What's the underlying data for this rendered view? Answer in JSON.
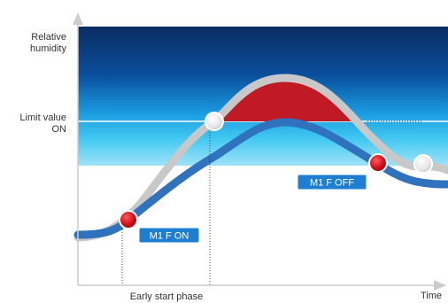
{
  "y_axis_label": [
    "Relative",
    "humidity"
  ],
  "limit_label": [
    "Limit value",
    "ON"
  ],
  "x_axis_label": "Time",
  "phase_label": "Early start phase",
  "badge_on": "M1 F ON",
  "badge_off": "M1 F OFF",
  "colors": {
    "band_dark": "#0a2d63",
    "band_mid": "#0b6fc3",
    "band_light": "#3fc7f1",
    "upper_curve": "#c8c8c8",
    "lower_curve": "#2f72bd",
    "exceed_fill": "#c01a24",
    "limit_line": "#ffffff",
    "badge_bg": "#1e7fd0",
    "marker_red": "#d0101a",
    "marker_grey": "#d8d8d8"
  },
  "icons": {
    "marker_on": "red-dot",
    "marker_off": "red-dot",
    "marker_limit": "grey-dot",
    "marker_end": "grey-dot"
  }
}
